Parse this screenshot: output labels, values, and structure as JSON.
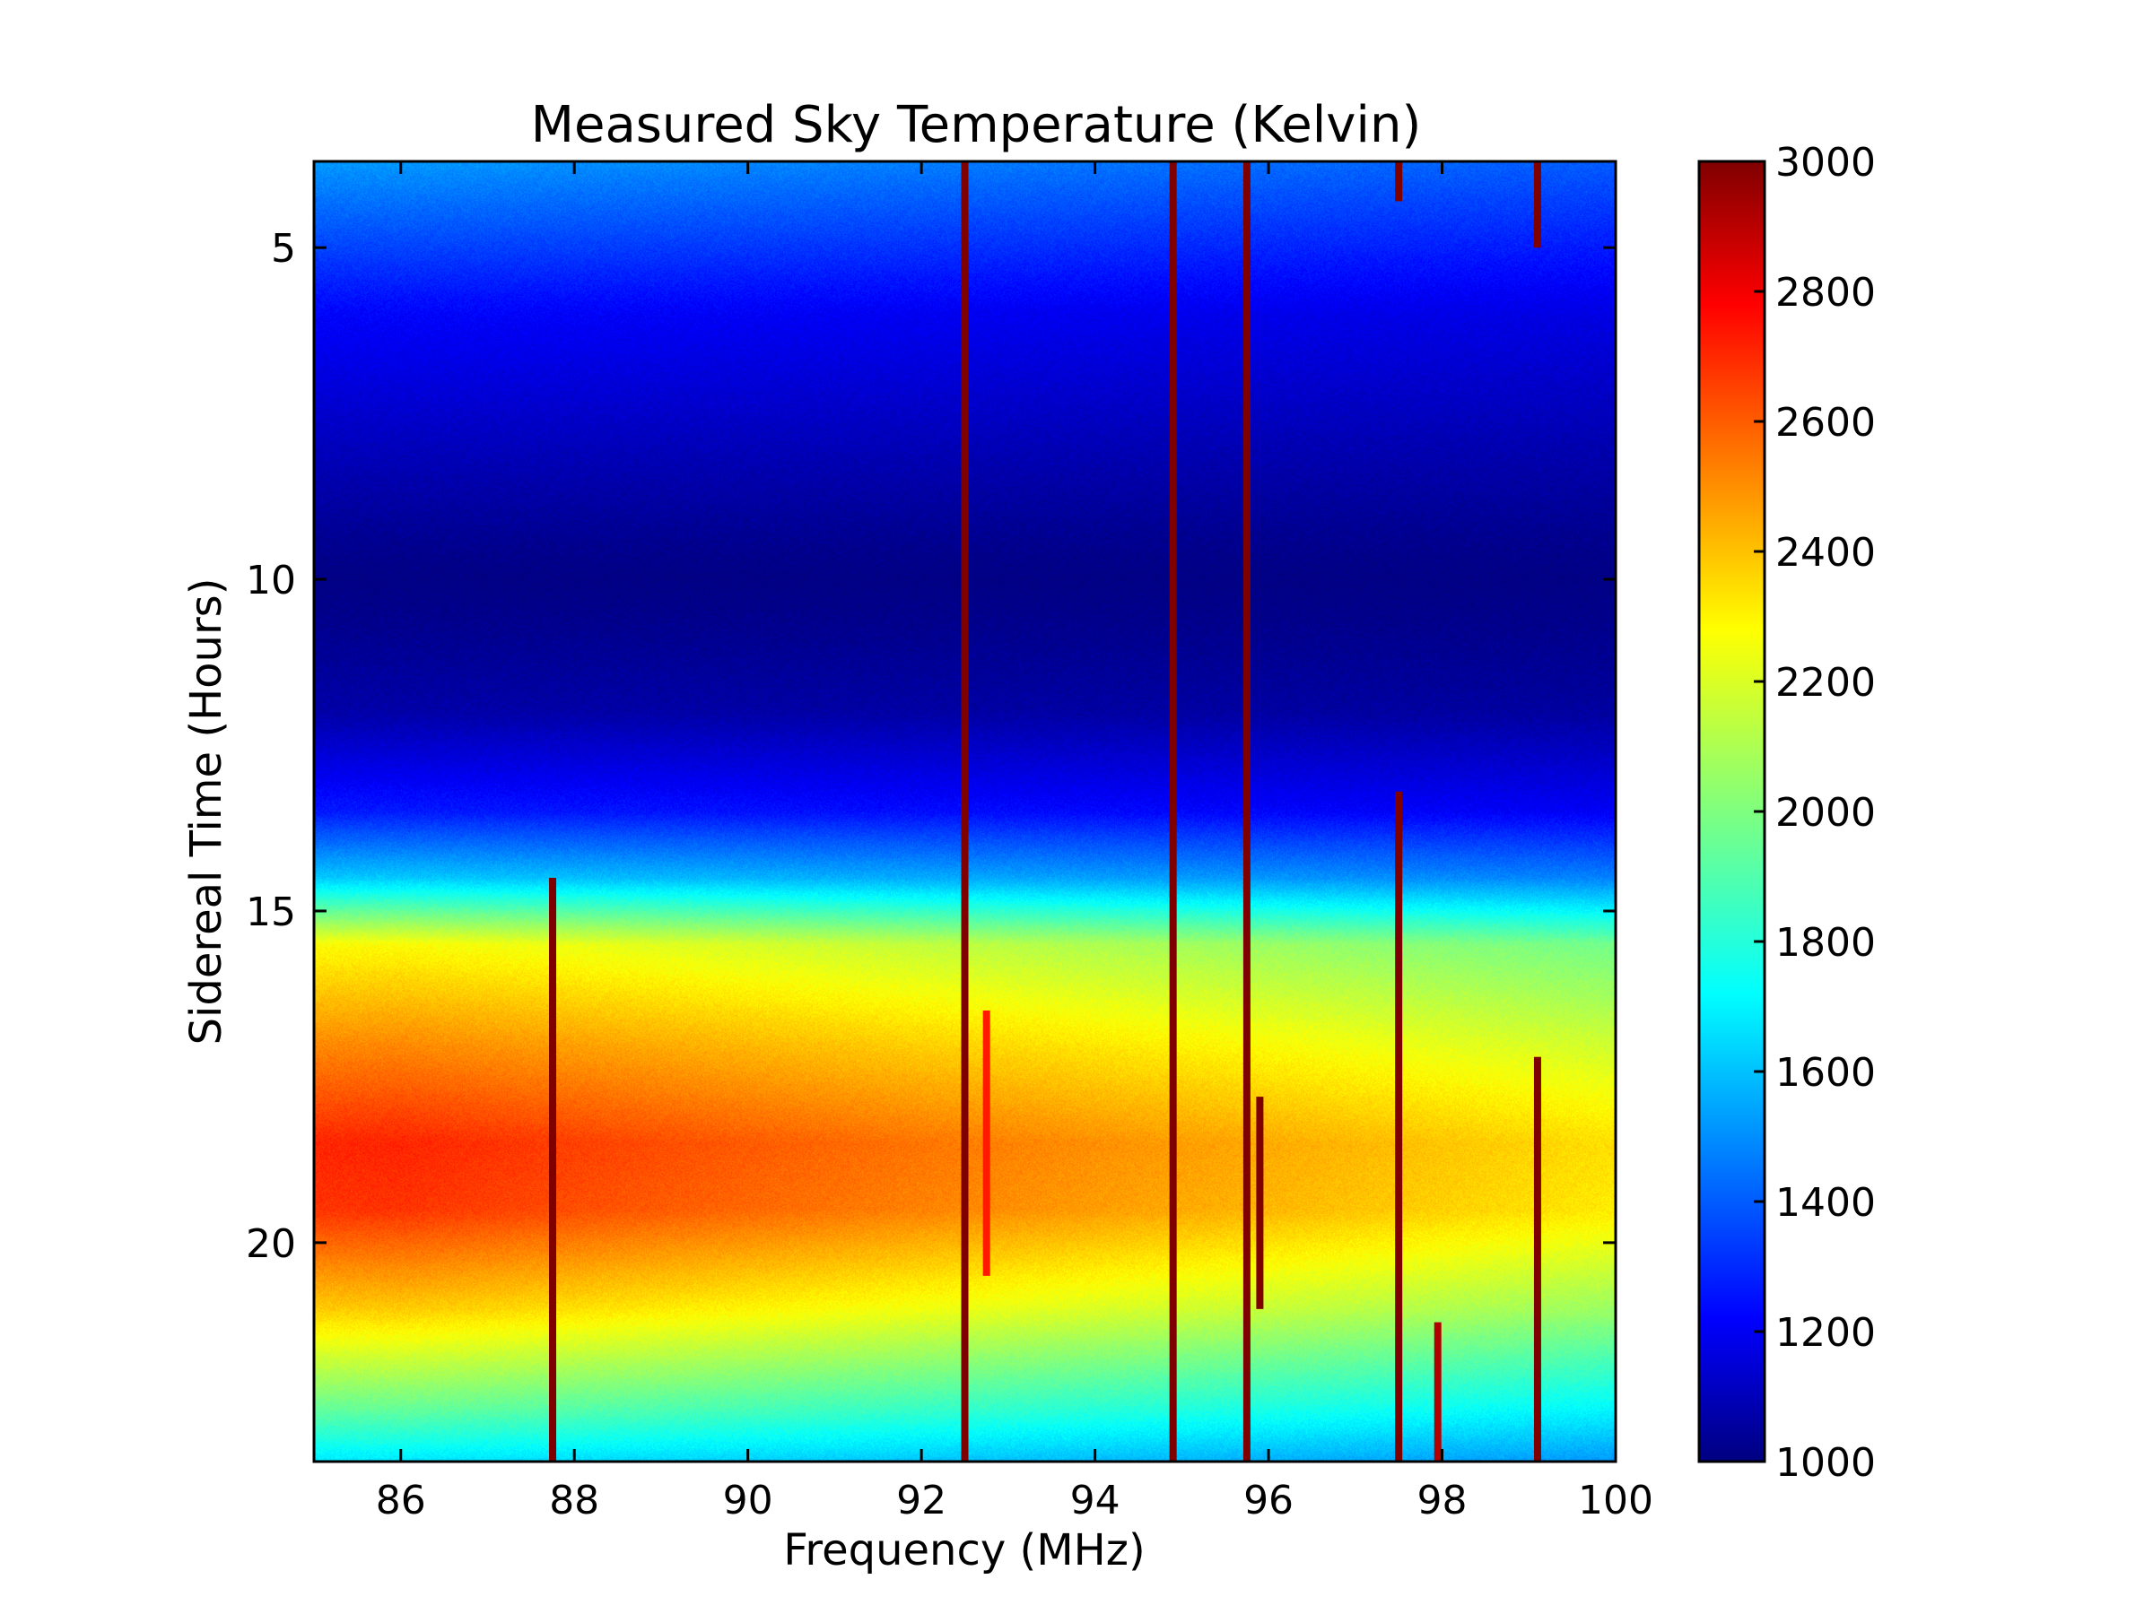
{
  "chart_data": {
    "type": "heatmap",
    "title": "Measured Sky Temperature (Kelvin)",
    "xlabel": "Frequency (MHz)",
    "ylabel": "Sidereal Time (Hours)",
    "xlim": [
      85,
      100
    ],
    "ylim": [
      3.7,
      23.3
    ],
    "y_inverted": true,
    "x_ticks": [
      86,
      88,
      90,
      92,
      94,
      96,
      98,
      100
    ],
    "x_tick_labels": [
      "86",
      "88",
      "90",
      "92",
      "94",
      "96",
      "98",
      "100"
    ],
    "y_ticks": [
      5,
      10,
      15,
      20
    ],
    "y_tick_labels": [
      "5",
      "10",
      "15",
      "20"
    ],
    "colorbar": {
      "colormap": "jet",
      "min": 1000,
      "max": 3000,
      "ticks": [
        1000,
        1200,
        1400,
        1600,
        1800,
        2000,
        2200,
        2400,
        2600,
        2800,
        3000
      ],
      "tick_labels": [
        "1000",
        "1200",
        "1400",
        "1600",
        "1800",
        "2000",
        "2200",
        "2400",
        "2600",
        "2800",
        "3000"
      ]
    },
    "background_model": {
      "time_hours": [
        3.7,
        6.0,
        8.0,
        10.0,
        12.0,
        13.5,
        14.5,
        15.5,
        17.0,
        18.5,
        19.5,
        21.0,
        22.5,
        23.3
      ],
      "kelvin_at_86MHz": [
        1550,
        1250,
        1120,
        1000,
        1080,
        1300,
        1650,
        2250,
        2480,
        2680,
        2650,
        2350,
        1950,
        1700
      ]
    },
    "rfi_lines": [
      {
        "freq_mhz": 87.75,
        "t_start": 14.5,
        "t_end": 23.3,
        "kelvin": 3000
      },
      {
        "freq_mhz": 92.5,
        "t_start": 3.7,
        "t_end": 23.3,
        "kelvin": 3000
      },
      {
        "freq_mhz": 92.75,
        "t_start": 16.5,
        "t_end": 20.5,
        "kelvin": 2700
      },
      {
        "freq_mhz": 94.9,
        "t_start": 3.7,
        "t_end": 23.3,
        "kelvin": 3000
      },
      {
        "freq_mhz": 95.75,
        "t_start": 3.7,
        "t_end": 23.3,
        "kelvin": 3000
      },
      {
        "freq_mhz": 95.9,
        "t_start": 17.8,
        "t_end": 21.0,
        "kelvin": 3000
      },
      {
        "freq_mhz": 97.5,
        "t_start": 13.2,
        "t_end": 23.3,
        "kelvin": 3000
      },
      {
        "freq_mhz": 97.5,
        "t_start": 3.7,
        "t_end": 4.3,
        "kelvin": 3000
      },
      {
        "freq_mhz": 97.95,
        "t_start": 21.2,
        "t_end": 23.3,
        "kelvin": 2900
      },
      {
        "freq_mhz": 99.1,
        "t_start": 17.2,
        "t_end": 23.3,
        "kelvin": 3000
      },
      {
        "freq_mhz": 99.1,
        "t_start": 3.7,
        "t_end": 5.0,
        "kelvin": 3000
      }
    ]
  }
}
